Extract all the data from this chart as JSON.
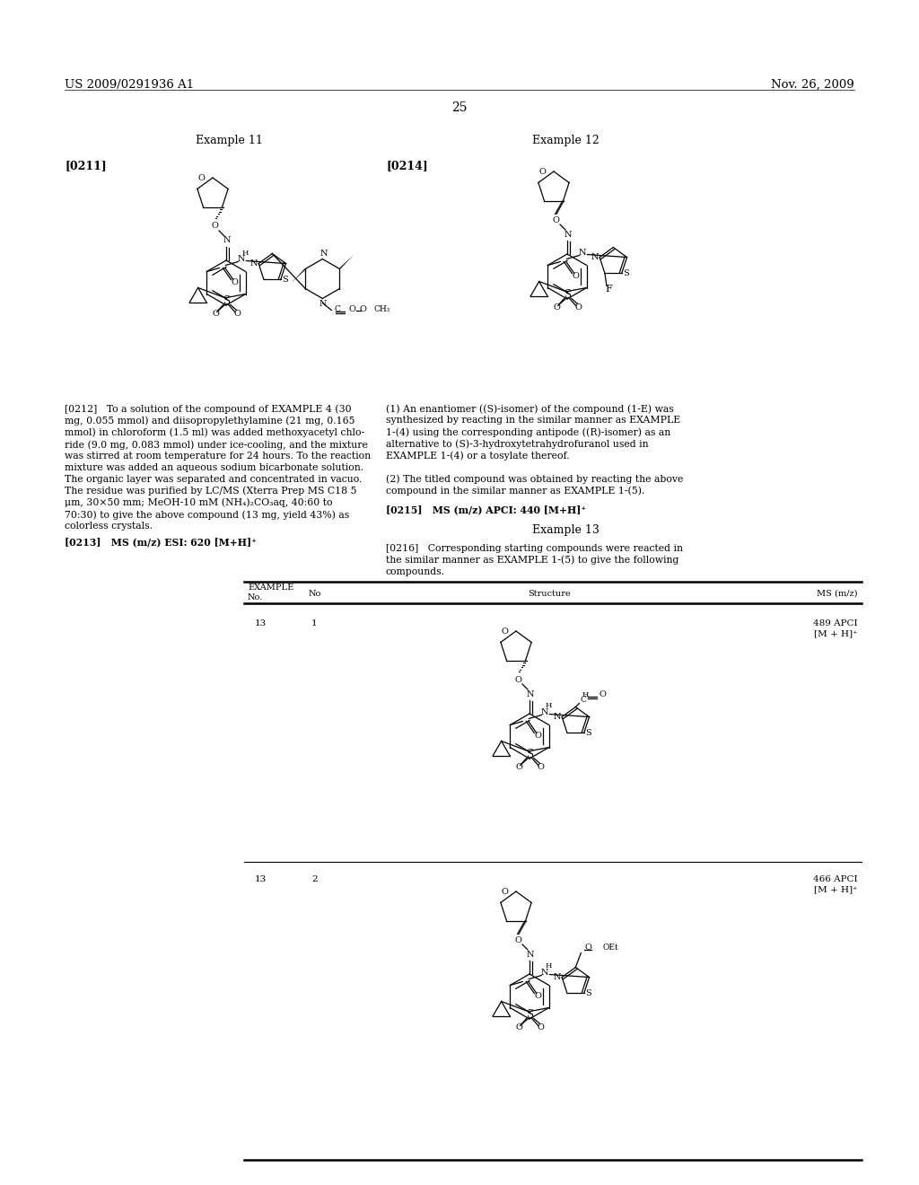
{
  "bg": "#ffffff",
  "header_left": "US 2009/0291936 A1",
  "header_right": "Nov. 26, 2009",
  "page_num": "25",
  "ex11_title": "Example 11",
  "ex12_title": "Example 12",
  "ex13_title": "Example 13",
  "ref_0211": "[0211]",
  "ref_0214": "[0214]",
  "text_212": "[0212]   To a solution of the compound of EXAMPLE 4 (30\nmg, 0.055 mmol) and diisopropylethylamine (21 mg, 0.165\nmmol) in chloroform (1.5 ml) was added methoxyacetyl chlo-\nride (9.0 mg, 0.083 mmol) under ice-cooling, and the mixture\nwas stirred at room temperature for 24 hours. To the reaction\nmixture was added an aqueous sodium bicarbonate solution.\nThe organic layer was separated and concentrated in vacuo.\nThe residue was purified by LC/MS (Xterra Prep MS C18 5\nμm, 30×50 mm; MeOH-10 mM (NH₄)₂CO₃aq, 40:60 to\n70:30) to give the above compound (13 mg, yield 43%) as\ncolorless crystals.",
  "text_213": "[0213]   MS (m/z) ESI: 620 [M+H]⁺",
  "text_214a": "(1) An enantiomer ((S)-isomer) of the compound (1-E) was\nsynthesized by reacting in the similar manner as EXAMPLE\n1-(4) using the corresponding antipode ((R)-isomer) as an\nalternative to (S)-3-hydroxytetrahydrofuranol used in\nEXAMPLE 1-(4) or a tosylate thereof.",
  "text_214b": "(2) The titled compound was obtained by reacting the above\ncompound in the similar manner as EXAMPLE 1-(5).",
  "text_215": "[0215]   MS (m/z) APCI: 440 [M+H]⁺",
  "text_216": "[0216]   Corresponding starting compounds were reacted in\nthe similar manner as EXAMPLE 1-(5) to give the following\ncompounds.",
  "tbl_ex1": "13",
  "tbl_no1": "1",
  "tbl_ms1": "489 APCI\n[M + H]⁺",
  "tbl_ex2": "13",
  "tbl_no2": "2",
  "tbl_ms2": "466 APCI\n[M + H]⁺"
}
